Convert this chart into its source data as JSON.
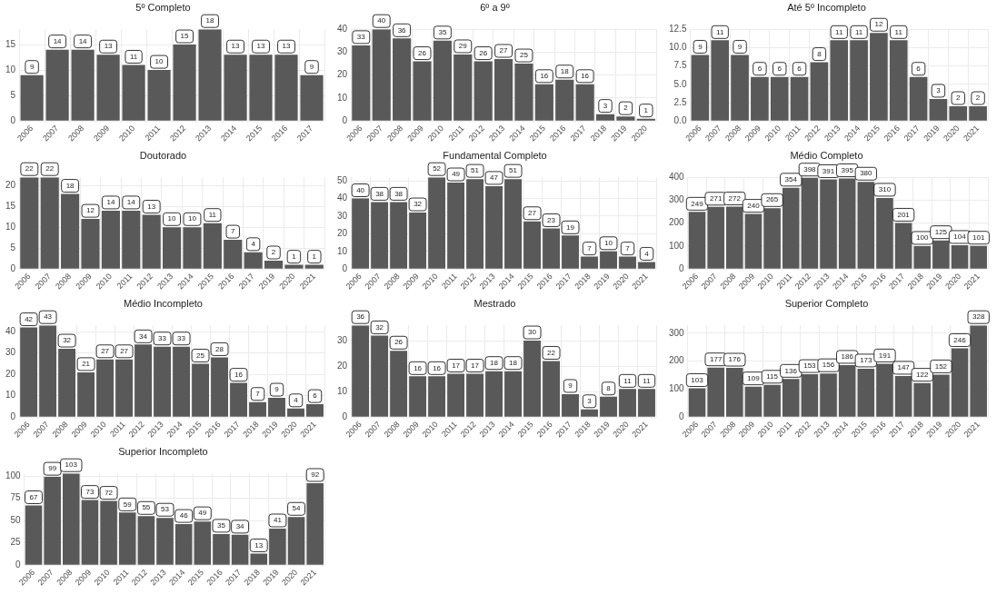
{
  "chart_data": [
    {
      "type": "bar",
      "title": "5º Completo",
      "categories": [
        "2006",
        "2007",
        "2008",
        "2009",
        "2010",
        "2011",
        "2012",
        "2013",
        "2014",
        "2015",
        "2016",
        "2017"
      ],
      "values": [
        9,
        14,
        14,
        13,
        11,
        10,
        15,
        18,
        13,
        13,
        13,
        9
      ],
      "color": "#595959",
      "ylim": [
        0,
        18
      ],
      "yticks": [
        0,
        5,
        10,
        15
      ],
      "grid": true,
      "data_labels": true
    },
    {
      "type": "bar",
      "title": "6º a 9º",
      "categories": [
        "2006",
        "2007",
        "2008",
        "2009",
        "2010",
        "2011",
        "2012",
        "2013",
        "2014",
        "2015",
        "2016",
        "2017",
        "2018",
        "2019",
        "2020"
      ],
      "values": [
        33,
        40,
        36,
        26,
        35,
        29,
        26,
        27,
        25,
        16,
        18,
        16,
        3,
        2,
        1
      ],
      "color": "#595959",
      "ylim": [
        0,
        40
      ],
      "yticks": [
        0,
        10,
        20,
        30,
        40
      ],
      "grid": true,
      "data_labels": true
    },
    {
      "type": "bar",
      "title": "Até 5º Incompleto",
      "categories": [
        "2006",
        "2007",
        "2008",
        "2009",
        "2010",
        "2011",
        "2012",
        "2013",
        "2014",
        "2015",
        "2016",
        "2017",
        "2019",
        "2020",
        "2021"
      ],
      "values": [
        9,
        11,
        9,
        6,
        6,
        6,
        8,
        11,
        11,
        12,
        11,
        6,
        3,
        2,
        2
      ],
      "color": "#595959",
      "ylim": [
        0,
        12.5
      ],
      "yticks": [
        {
          "value": 0,
          "label": "0.0"
        },
        {
          "value": 2.5,
          "label": "2.5"
        },
        {
          "value": 5,
          "label": "5.0"
        },
        {
          "value": 7.5,
          "label": "7.5"
        },
        {
          "value": 10,
          "label": "10.0"
        },
        {
          "value": 12.5,
          "label": "12.5"
        }
      ],
      "grid": true,
      "data_labels": true
    },
    {
      "type": "bar",
      "title": "Doutorado",
      "categories": [
        "2006",
        "2007",
        "2008",
        "2009",
        "2010",
        "2011",
        "2012",
        "2013",
        "2014",
        "2015",
        "2016",
        "2017",
        "2019",
        "2020",
        "2021"
      ],
      "values": [
        22,
        22,
        18,
        12,
        14,
        14,
        13,
        10,
        10,
        11,
        7,
        4,
        2,
        1,
        1
      ],
      "color": "#595959",
      "ylim": [
        0,
        22
      ],
      "yticks": [
        0,
        5,
        10,
        15,
        20
      ],
      "grid": true,
      "data_labels": true
    },
    {
      "type": "bar",
      "title": "Fundamental Completo",
      "categories": [
        "2006",
        "2007",
        "2008",
        "2009",
        "2010",
        "2011",
        "2012",
        "2013",
        "2014",
        "2015",
        "2016",
        "2017",
        "2018",
        "2019",
        "2020",
        "2021"
      ],
      "values": [
        40,
        38,
        38,
        32,
        52,
        49,
        51,
        47,
        51,
        27,
        23,
        19,
        7,
        10,
        7,
        4
      ],
      "color": "#595959",
      "ylim": [
        0,
        52
      ],
      "yticks": [
        0,
        10,
        20,
        30,
        40,
        50
      ],
      "grid": true,
      "data_labels": true
    },
    {
      "type": "bar",
      "title": "Médio Completo",
      "categories": [
        "2006",
        "2007",
        "2008",
        "2009",
        "2010",
        "2011",
        "2012",
        "2013",
        "2014",
        "2015",
        "2016",
        "2017",
        "2018",
        "2019",
        "2020",
        "2021"
      ],
      "values": [
        249,
        271,
        272,
        240,
        265,
        354,
        398,
        391,
        395,
        380,
        310,
        201,
        100,
        125,
        104,
        101
      ],
      "color": "#595959",
      "ylim": [
        0,
        400
      ],
      "yticks": [
        0,
        100,
        200,
        300,
        400
      ],
      "grid": true,
      "data_labels": true
    },
    {
      "type": "bar",
      "title": "Médio Incompleto",
      "categories": [
        "2006",
        "2007",
        "2008",
        "2009",
        "2010",
        "2011",
        "2012",
        "2013",
        "2014",
        "2015",
        "2016",
        "2017",
        "2018",
        "2019",
        "2020",
        "2021"
      ],
      "values": [
        42,
        43,
        32,
        21,
        27,
        27,
        34,
        33,
        33,
        25,
        28,
        16,
        7,
        9,
        4,
        6
      ],
      "color": "#595959",
      "ylim": [
        0,
        43
      ],
      "yticks": [
        0,
        10,
        20,
        30,
        40
      ],
      "grid": true,
      "data_labels": true
    },
    {
      "type": "bar",
      "title": "Mestrado",
      "categories": [
        "2006",
        "2007",
        "2008",
        "2009",
        "2010",
        "2011",
        "2012",
        "2013",
        "2014",
        "2015",
        "2016",
        "2017",
        "2018",
        "2019",
        "2020",
        "2021"
      ],
      "values": [
        36,
        32,
        26,
        16,
        16,
        17,
        17,
        18,
        18,
        30,
        22,
        9,
        3,
        8,
        11,
        11
      ],
      "color": "#595959",
      "ylim": [
        0,
        36
      ],
      "yticks": [
        0,
        10,
        20,
        30
      ],
      "grid": true,
      "data_labels": true
    },
    {
      "type": "bar",
      "title": "Superior Completo",
      "categories": [
        "2006",
        "2007",
        "2008",
        "2009",
        "2010",
        "2011",
        "2012",
        "2013",
        "2014",
        "2015",
        "2016",
        "2017",
        "2018",
        "2019",
        "2020",
        "2021"
      ],
      "values": [
        103,
        177,
        176,
        109,
        115,
        136,
        153,
        156,
        186,
        173,
        191,
        147,
        122,
        152,
        246,
        328
      ],
      "color": "#595959",
      "ylim": [
        0,
        328
      ],
      "yticks": [
        0,
        100,
        200,
        300
      ],
      "grid": true,
      "data_labels": true
    },
    {
      "type": "bar",
      "title": "Superior Incompleto",
      "categories": [
        "2006",
        "2007",
        "2008",
        "2009",
        "2010",
        "2011",
        "2012",
        "2013",
        "2014",
        "2015",
        "2016",
        "2017",
        "2018",
        "2019",
        "2020",
        "2021"
      ],
      "values": [
        67,
        99,
        103,
        73,
        72,
        59,
        55,
        53,
        46,
        49,
        35,
        34,
        13,
        41,
        54,
        92
      ],
      "color": "#595959",
      "ylim": [
        0,
        103
      ],
      "yticks": [
        0,
        25,
        50,
        75,
        100
      ],
      "grid": true,
      "data_labels": true
    }
  ]
}
